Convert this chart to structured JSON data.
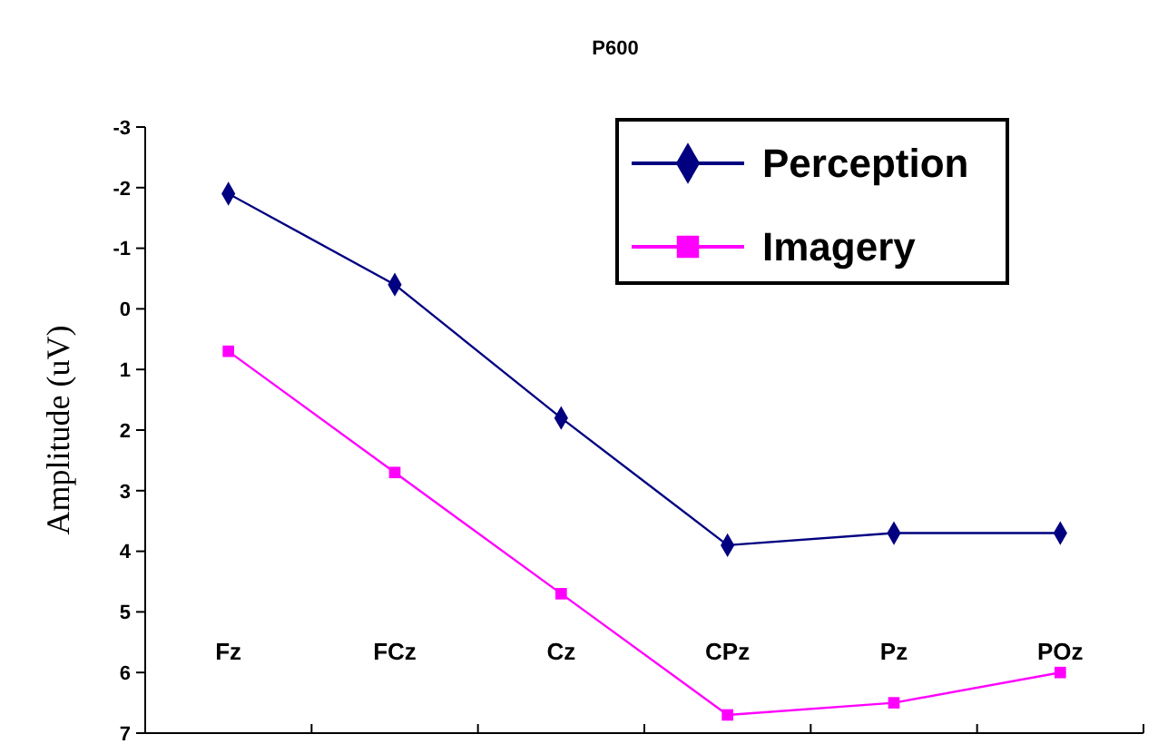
{
  "chart_data": {
    "type": "line",
    "title": "P600",
    "ylabel": "Amplitude (uV)",
    "categories": [
      "Fz",
      "FCz",
      "Cz",
      "CPz",
      "Pz",
      "POz"
    ],
    "series": [
      {
        "name": "Perception",
        "color": "#000080",
        "marker": "diamond",
        "values": [
          -1.9,
          -0.4,
          1.8,
          3.9,
          3.7,
          3.7
        ]
      },
      {
        "name": "Imagery",
        "color": "#ff00ff",
        "marker": "square",
        "values": [
          0.7,
          2.7,
          4.7,
          6.7,
          6.5,
          6.0
        ]
      }
    ],
    "ylim": [
      7,
      -3
    ],
    "yticks": [
      -3,
      -2,
      -1,
      0,
      1,
      2,
      3,
      4,
      5,
      6,
      7
    ],
    "legend": "top right",
    "grid": false
  }
}
